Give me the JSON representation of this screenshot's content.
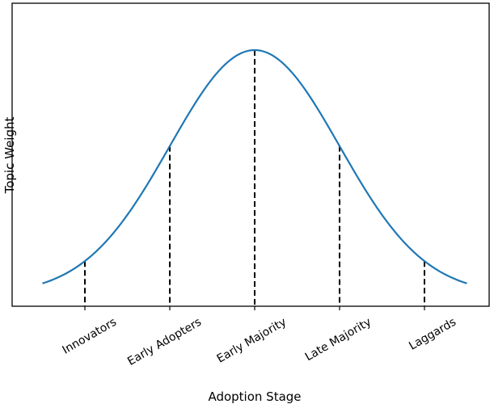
{
  "chart_data": {
    "type": "line",
    "xlabel": "Adoption Stage",
    "ylabel": "Topic Weight",
    "categories": [
      "Innovators",
      "Early Adopters",
      "Early Majority",
      "Late Majority",
      "Laggards"
    ],
    "distribution": {
      "shape": "normal",
      "mean": 2,
      "std": 1,
      "x_range": [
        -0.5,
        4.5
      ]
    },
    "marker_values": [
      0.135,
      0.607,
      1.0,
      0.607,
      0.135
    ],
    "marker_style": "dashed",
    "tick_label_rotation_deg": 30,
    "grid": false,
    "legend": "none",
    "colors": {
      "curve": "#1f77b4",
      "markers": "#000000",
      "axes": "#000000"
    }
  }
}
